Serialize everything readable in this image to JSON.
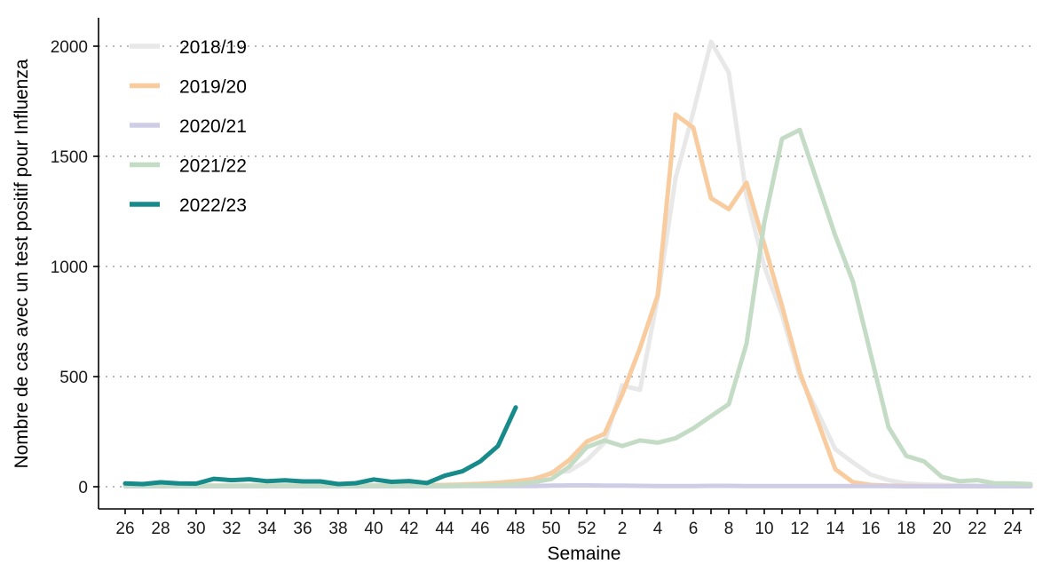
{
  "chart_data": {
    "type": "line",
    "xlabel": "Semaine",
    "ylabel": "Nombre de cas avec un test positif pour Influenza",
    "ylim": [
      0,
      2100
    ],
    "yticks": [
      0,
      500,
      1000,
      1500,
      2000
    ],
    "x_tick_labels": [
      "26",
      "28",
      "30",
      "32",
      "34",
      "36",
      "38",
      "40",
      "42",
      "44",
      "46",
      "48",
      "50",
      "52",
      "2",
      "4",
      "6",
      "8",
      "10",
      "12",
      "14",
      "16",
      "18",
      "20",
      "22",
      "24"
    ],
    "x_positions": [
      "26",
      "27",
      "28",
      "29",
      "30",
      "31",
      "32",
      "33",
      "34",
      "35",
      "36",
      "37",
      "38",
      "39",
      "40",
      "41",
      "42",
      "43",
      "44",
      "45",
      "46",
      "47",
      "48",
      "49",
      "50",
      "51",
      "52",
      "1",
      "2",
      "3",
      "4",
      "5",
      "6",
      "7",
      "8",
      "9",
      "10",
      "11",
      "12",
      "13",
      "14",
      "15",
      "16",
      "17",
      "18",
      "19",
      "20",
      "21",
      "22",
      "23",
      "24",
      "25"
    ],
    "grid": "horizontal-dotted",
    "legend_position": "top-left",
    "series": [
      {
        "name": "2018/19",
        "color": "#e8e8e8",
        "values": [
          3,
          3,
          4,
          3,
          4,
          4,
          4,
          5,
          4,
          4,
          5,
          5,
          5,
          6,
          6,
          5,
          6,
          6,
          7,
          8,
          10,
          15,
          20,
          30,
          65,
          70,
          120,
          200,
          460,
          440,
          860,
          1400,
          1700,
          2020,
          1880,
          1320,
          1000,
          780,
          500,
          340,
          170,
          110,
          55,
          30,
          15,
          10,
          8,
          6,
          5,
          5,
          4,
          4
        ]
      },
      {
        "name": "2019/20",
        "color": "#f8cc9e",
        "values": [
          5,
          5,
          5,
          5,
          5,
          5,
          5,
          5,
          5,
          5,
          5,
          5,
          5,
          5,
          5,
          6,
          6,
          7,
          8,
          10,
          13,
          18,
          25,
          35,
          60,
          120,
          205,
          240,
          420,
          630,
          870,
          1690,
          1630,
          1310,
          1260,
          1380,
          1100,
          820,
          520,
          300,
          80,
          20,
          8,
          5,
          4,
          3,
          3,
          2,
          2,
          2,
          2,
          2
        ]
      },
      {
        "name": "2020/21",
        "color": "#cfcde6",
        "values": [
          2,
          2,
          2,
          2,
          2,
          2,
          2,
          2,
          2,
          2,
          2,
          2,
          2,
          2,
          2,
          2,
          2,
          2,
          2,
          3,
          3,
          3,
          3,
          3,
          5,
          6,
          6,
          5,
          5,
          4,
          3,
          3,
          3,
          4,
          4,
          3,
          3,
          3,
          3,
          3,
          3,
          3,
          3,
          3,
          2,
          2,
          2,
          2,
          2,
          2,
          2,
          2
        ]
      },
      {
        "name": "2021/22",
        "color": "#c4dcc6",
        "values": [
          4,
          4,
          4,
          4,
          4,
          4,
          4,
          4,
          4,
          4,
          4,
          4,
          4,
          4,
          4,
          4,
          4,
          4,
          4,
          5,
          6,
          8,
          12,
          20,
          35,
          90,
          180,
          210,
          185,
          210,
          200,
          220,
          265,
          320,
          375,
          650,
          1200,
          1580,
          1620,
          1380,
          1140,
          930,
          600,
          270,
          140,
          115,
          45,
          25,
          30,
          15,
          15,
          12
        ]
      },
      {
        "name": "2022/23",
        "color": "#178a8a",
        "values": [
          15,
          12,
          20,
          15,
          14,
          36,
          30,
          34,
          25,
          29,
          24,
          24,
          12,
          16,
          33,
          22,
          26,
          17,
          50,
          70,
          115,
          185,
          360
        ]
      }
    ]
  }
}
